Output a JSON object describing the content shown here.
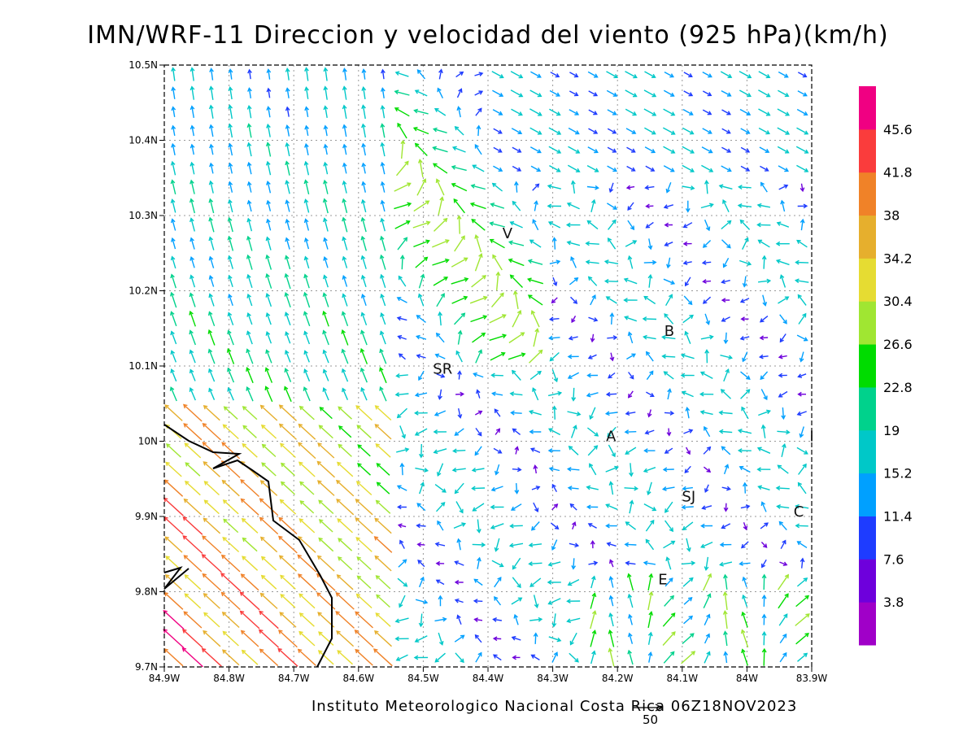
{
  "title": "IMN/WRF-11 Direccion y velocidad del viento (925 hPa)(km/h)",
  "credit": "Instituto Meteorologico Nacional Costa Rica 06Z18NOV2023",
  "scale_vector": {
    "label": "50",
    "magnitude": 50
  },
  "axes": {
    "x_ticks": [
      "84.9W",
      "84.8W",
      "84.7W",
      "84.6W",
      "84.5W",
      "84.4W",
      "84.3W",
      "84.2W",
      "84.1W",
      "84W",
      "83.9W"
    ],
    "y_ticks": [
      "9.7N",
      "9.8N",
      "9.9N",
      "10N",
      "10.1N",
      "10.2N",
      "10.3N",
      "10.4N",
      "10.5N"
    ],
    "lon_range": [
      -84.9,
      -83.9
    ],
    "lat_range": [
      9.7,
      10.5
    ]
  },
  "colorbar": {
    "levels": [
      "3.8",
      "7.6",
      "11.4",
      "15.2",
      "19",
      "22.8",
      "26.6",
      "30.4",
      "34.2",
      "38",
      "41.8",
      "45.6"
    ],
    "colors": [
      "#a000c8",
      "#6e00dc",
      "#1e3cff",
      "#00a0ff",
      "#00c8c8",
      "#00d28c",
      "#00dc00",
      "#a0e632",
      "#e6dc32",
      "#e6af2d",
      "#f08228",
      "#fa3c3c",
      "#f00082"
    ]
  },
  "locations": [
    {
      "name": "V",
      "lon": -84.37,
      "lat": 10.27
    },
    {
      "name": "B",
      "lon": -84.12,
      "lat": 10.14
    },
    {
      "name": "SR",
      "lon": -84.47,
      "lat": 10.09
    },
    {
      "name": "A",
      "lon": -84.21,
      "lat": 10.0
    },
    {
      "name": "SJ",
      "lon": -84.09,
      "lat": 9.92
    },
    {
      "name": "C",
      "lon": -83.92,
      "lat": 9.9
    },
    {
      "name": "E",
      "lon": -84.13,
      "lat": 9.81
    },
    {
      "name": "I",
      "lon": -83.9,
      "lat": 10.0
    }
  ]
}
